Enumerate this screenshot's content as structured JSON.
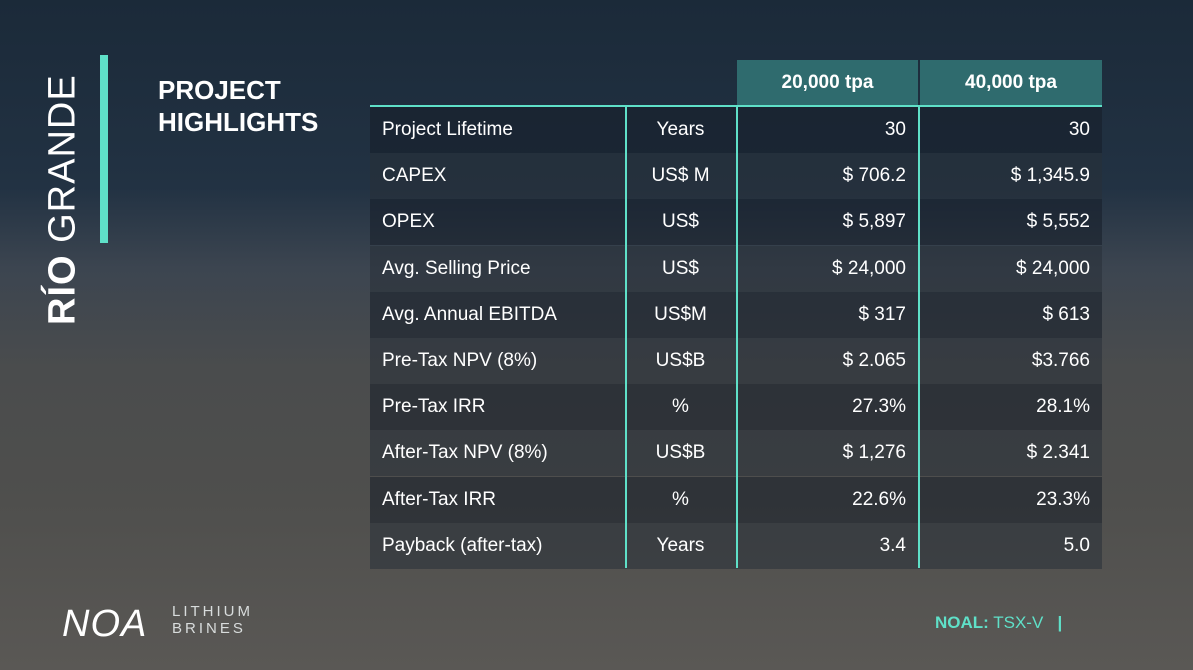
{
  "brand": {
    "title_bold": "RÍO",
    "title_light": "GRANDE"
  },
  "section_title": [
    "PROJECT",
    "HIGHLIGHTS"
  ],
  "table": {
    "columns": [
      "20,000 tpa",
      "40,000 tpa"
    ],
    "rows": [
      [
        "Project Lifetime",
        "Years",
        "30",
        "30"
      ],
      [
        "CAPEX",
        "US$ M",
        "$ 706.2",
        "$ 1,345.9"
      ],
      [
        "OPEX",
        "US$",
        "$ 5,897",
        "$ 5,552"
      ],
      [
        "Avg. Selling Price",
        "US$",
        "$ 24,000",
        "$ 24,000"
      ],
      [
        "Avg. Annual EBITDA",
        "US$M",
        "$ 317",
        "$ 613"
      ],
      [
        "Pre-Tax NPV (8%)",
        "US$B",
        "$ 2.065",
        "$3.766"
      ],
      [
        "Pre-Tax IRR",
        "%",
        "27.3%",
        "28.1%"
      ],
      [
        "After-Tax NPV (8%)",
        "US$B",
        "$ 1,276",
        "$ 2.341"
      ],
      [
        "After-Tax IRR",
        "%",
        "22.6%",
        "23.3%"
      ],
      [
        "Payback (after-tax)",
        "Years",
        "3.4",
        "5.0"
      ]
    ]
  },
  "footer": {
    "logo": {
      "mark": "NOA",
      "line1": "LITHIUM",
      "line2": "BRINES"
    },
    "ticker": {
      "symbol": "NOAL:",
      "exchange": "TSX-V",
      "separator": "|"
    }
  }
}
